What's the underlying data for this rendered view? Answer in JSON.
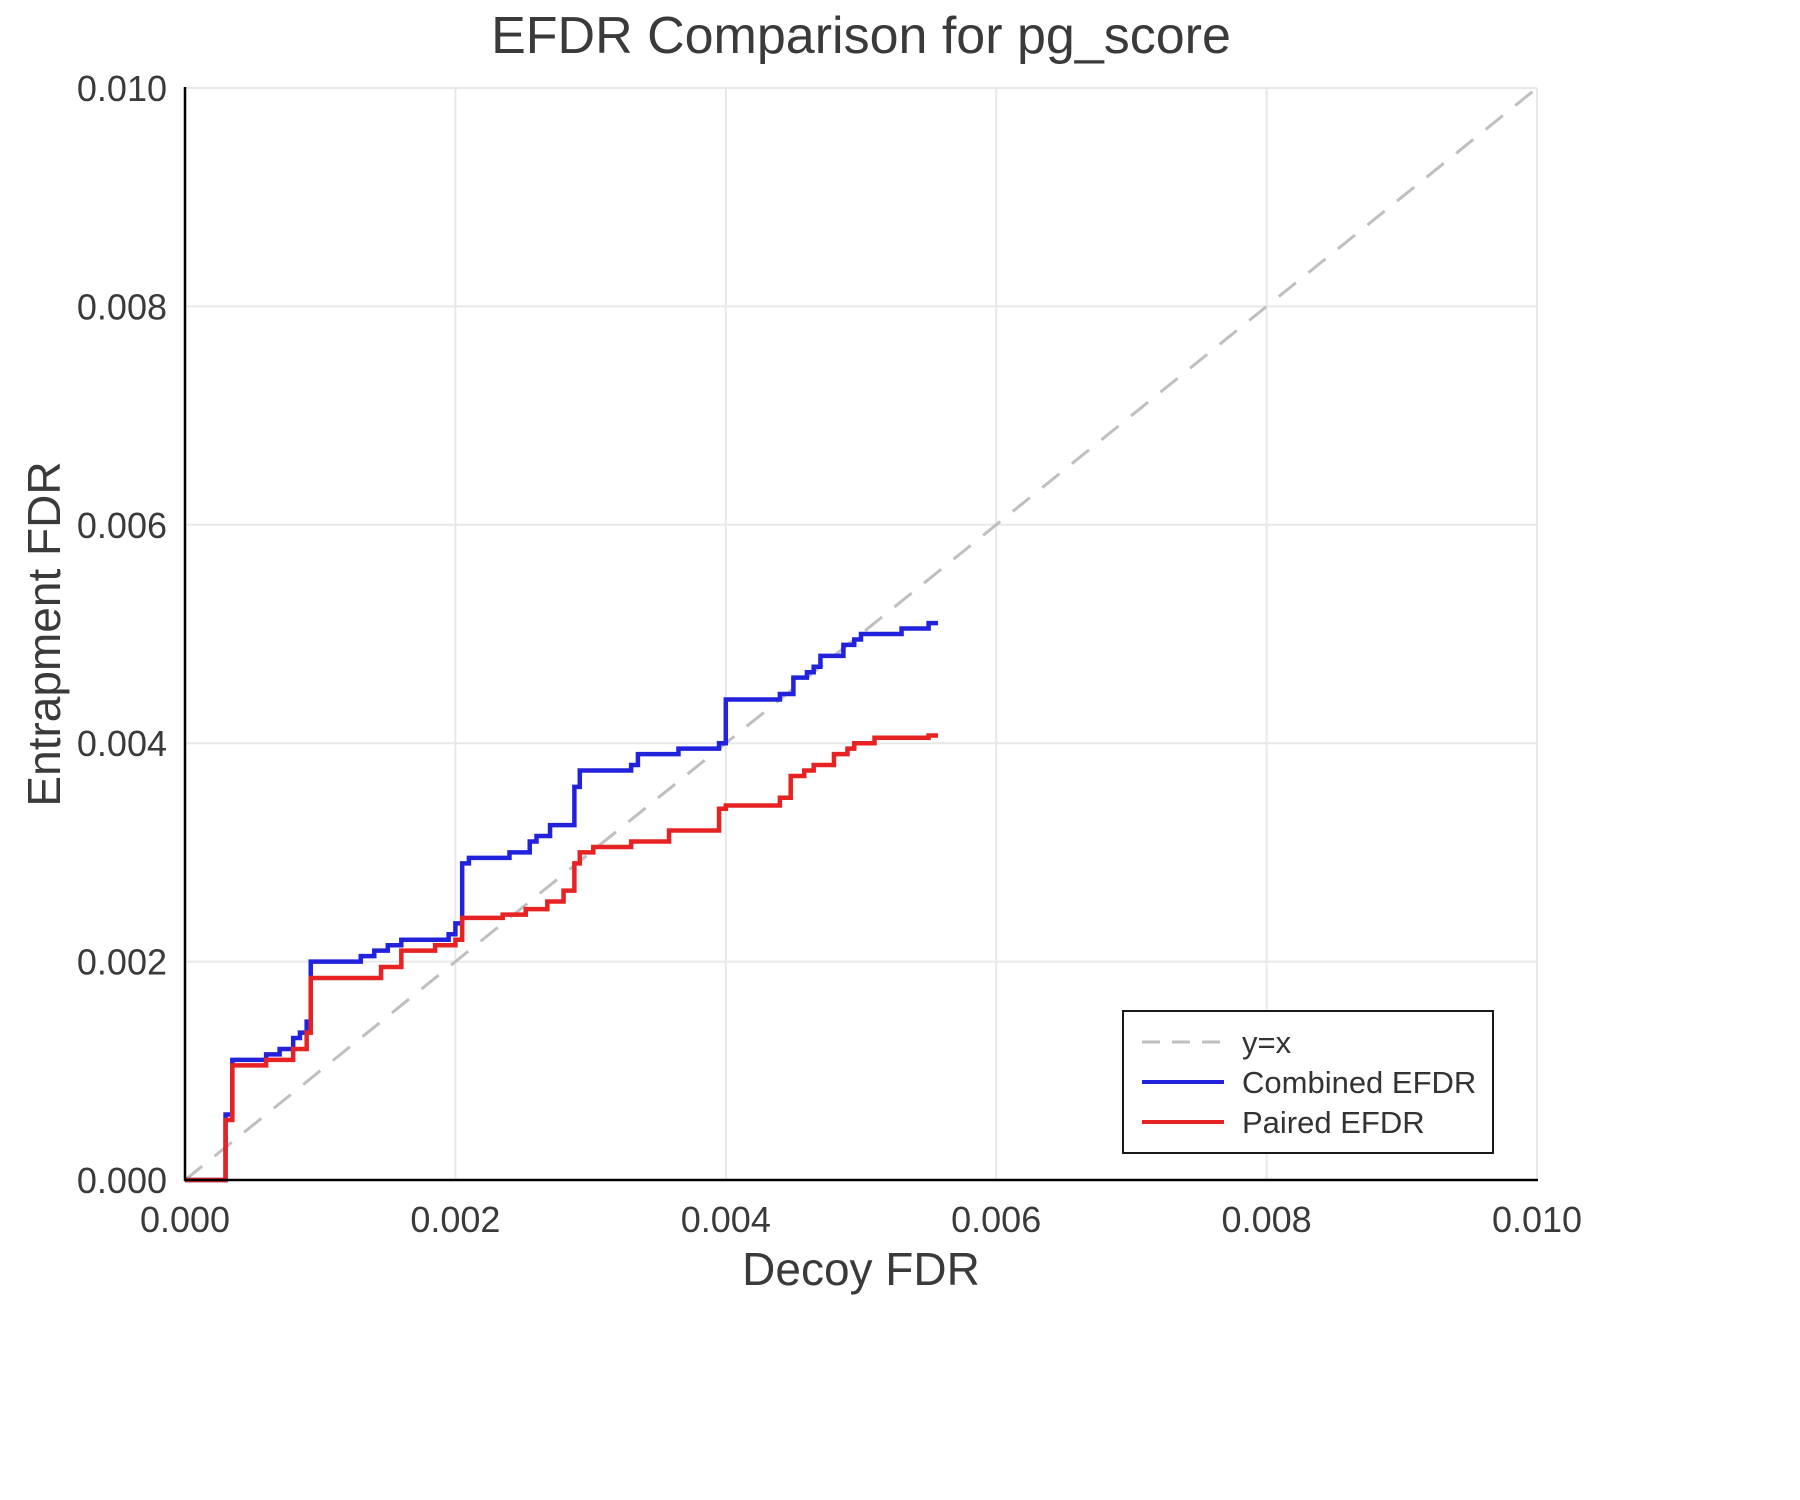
{
  "page": {
    "background": "#ffffff"
  },
  "chart_data": {
    "type": "line",
    "title": "EFDR Comparison for pg_score",
    "xlabel": "Decoy FDR",
    "ylabel": "Entrapment FDR",
    "xlim": [
      0.0,
      0.01
    ],
    "ylim": [
      0.0,
      0.01
    ],
    "xticks": [
      0.0,
      0.002,
      0.004,
      0.006,
      0.008,
      0.01
    ],
    "xtick_labels": [
      "0.000",
      "0.002",
      "0.004",
      "0.006",
      "0.008",
      "0.010"
    ],
    "yticks": [
      0.0,
      0.002,
      0.004,
      0.006,
      0.008,
      0.01
    ],
    "ytick_labels": [
      "0.000",
      "0.002",
      "0.004",
      "0.006",
      "0.008",
      "0.010"
    ],
    "grid": true,
    "grid_color": "#e8e8e8",
    "axis_color": "#000000",
    "text_color": "#3a3a3a",
    "legend": {
      "position": "lower-right",
      "border_color": "#1a1a1a",
      "background": "#ffffff"
    },
    "series": [
      {
        "name": "y=x",
        "color": "#bfbfbf",
        "dash": true,
        "width": 3,
        "points": [
          [
            0.0,
            0.0
          ],
          [
            0.01,
            0.01
          ]
        ]
      },
      {
        "name": "Combined EFDR",
        "color": "#2222dd",
        "dash": false,
        "width": 4.5,
        "points": [
          [
            0.0,
            0.0
          ],
          [
            0.0003,
            0.0
          ],
          [
            0.0003,
            0.0006
          ],
          [
            0.00035,
            0.0006
          ],
          [
            0.00035,
            0.0011
          ],
          [
            0.0006,
            0.0011
          ],
          [
            0.0006,
            0.00115
          ],
          [
            0.0007,
            0.00115
          ],
          [
            0.0007,
            0.0012
          ],
          [
            0.0008,
            0.0012
          ],
          [
            0.0008,
            0.0013
          ],
          [
            0.00085,
            0.0013
          ],
          [
            0.00085,
            0.00135
          ],
          [
            0.0009,
            0.00135
          ],
          [
            0.0009,
            0.00145
          ],
          [
            0.00093,
            0.00145
          ],
          [
            0.00093,
            0.002
          ],
          [
            0.0013,
            0.002
          ],
          [
            0.0013,
            0.00205
          ],
          [
            0.0014,
            0.00205
          ],
          [
            0.0014,
            0.0021
          ],
          [
            0.0015,
            0.0021
          ],
          [
            0.0015,
            0.00215
          ],
          [
            0.0016,
            0.00215
          ],
          [
            0.0016,
            0.0022
          ],
          [
            0.00195,
            0.0022
          ],
          [
            0.00195,
            0.00225
          ],
          [
            0.002,
            0.00225
          ],
          [
            0.002,
            0.00235
          ],
          [
            0.00205,
            0.00235
          ],
          [
            0.00205,
            0.0029
          ],
          [
            0.0021,
            0.0029
          ],
          [
            0.0021,
            0.00295
          ],
          [
            0.0024,
            0.00295
          ],
          [
            0.0024,
            0.003
          ],
          [
            0.00255,
            0.003
          ],
          [
            0.00255,
            0.0031
          ],
          [
            0.0026,
            0.0031
          ],
          [
            0.0026,
            0.00315
          ],
          [
            0.0027,
            0.00315
          ],
          [
            0.0027,
            0.00325
          ],
          [
            0.00288,
            0.00325
          ],
          [
            0.00288,
            0.0036
          ],
          [
            0.00292,
            0.0036
          ],
          [
            0.00292,
            0.00375
          ],
          [
            0.0033,
            0.00375
          ],
          [
            0.0033,
            0.0038
          ],
          [
            0.00335,
            0.0038
          ],
          [
            0.00335,
            0.0039
          ],
          [
            0.00365,
            0.0039
          ],
          [
            0.00365,
            0.00395
          ],
          [
            0.00395,
            0.00395
          ],
          [
            0.00395,
            0.004
          ],
          [
            0.004,
            0.004
          ],
          [
            0.004,
            0.0044
          ],
          [
            0.0044,
            0.0044
          ],
          [
            0.0044,
            0.00445
          ],
          [
            0.0045,
            0.00445
          ],
          [
            0.0045,
            0.0046
          ],
          [
            0.0046,
            0.0046
          ],
          [
            0.0046,
            0.00465
          ],
          [
            0.00465,
            0.00465
          ],
          [
            0.00465,
            0.0047
          ],
          [
            0.0047,
            0.0047
          ],
          [
            0.0047,
            0.0048
          ],
          [
            0.00487,
            0.0048
          ],
          [
            0.00487,
            0.0049
          ],
          [
            0.00495,
            0.0049
          ],
          [
            0.00495,
            0.00495
          ],
          [
            0.005,
            0.00495
          ],
          [
            0.005,
            0.005
          ],
          [
            0.0053,
            0.005
          ],
          [
            0.0053,
            0.00505
          ],
          [
            0.0055,
            0.00505
          ],
          [
            0.0055,
            0.0051
          ],
          [
            0.00557,
            0.0051
          ]
        ]
      },
      {
        "name": "Paired EFDR",
        "color": "#e62222",
        "dash": false,
        "width": 4.5,
        "points": [
          [
            0.0,
            0.0
          ],
          [
            0.0003,
            0.0
          ],
          [
            0.0003,
            0.00055
          ],
          [
            0.00035,
            0.00055
          ],
          [
            0.00035,
            0.00105
          ],
          [
            0.0006,
            0.00105
          ],
          [
            0.0006,
            0.0011
          ],
          [
            0.0008,
            0.0011
          ],
          [
            0.0008,
            0.0012
          ],
          [
            0.0009,
            0.0012
          ],
          [
            0.0009,
            0.00135
          ],
          [
            0.00093,
            0.00135
          ],
          [
            0.00093,
            0.00185
          ],
          [
            0.00145,
            0.00185
          ],
          [
            0.00145,
            0.00195
          ],
          [
            0.0016,
            0.00195
          ],
          [
            0.0016,
            0.0021
          ],
          [
            0.00185,
            0.0021
          ],
          [
            0.00185,
            0.00215
          ],
          [
            0.002,
            0.00215
          ],
          [
            0.002,
            0.0022
          ],
          [
            0.00205,
            0.0022
          ],
          [
            0.00205,
            0.0024
          ],
          [
            0.00235,
            0.0024
          ],
          [
            0.00235,
            0.00243
          ],
          [
            0.00252,
            0.00243
          ],
          [
            0.00252,
            0.00248
          ],
          [
            0.00268,
            0.00248
          ],
          [
            0.00268,
            0.00255
          ],
          [
            0.0028,
            0.00255
          ],
          [
            0.0028,
            0.00265
          ],
          [
            0.00288,
            0.00265
          ],
          [
            0.00288,
            0.0029
          ],
          [
            0.00292,
            0.0029
          ],
          [
            0.00292,
            0.003
          ],
          [
            0.00302,
            0.003
          ],
          [
            0.00302,
            0.00305
          ],
          [
            0.0033,
            0.00305
          ],
          [
            0.0033,
            0.0031
          ],
          [
            0.00358,
            0.0031
          ],
          [
            0.00358,
            0.0032
          ],
          [
            0.00395,
            0.0032
          ],
          [
            0.00395,
            0.0034
          ],
          [
            0.004,
            0.0034
          ],
          [
            0.004,
            0.00343
          ],
          [
            0.0044,
            0.00343
          ],
          [
            0.0044,
            0.0035
          ],
          [
            0.00448,
            0.0035
          ],
          [
            0.00448,
            0.0037
          ],
          [
            0.00458,
            0.0037
          ],
          [
            0.00458,
            0.00375
          ],
          [
            0.00465,
            0.00375
          ],
          [
            0.00465,
            0.0038
          ],
          [
            0.0048,
            0.0038
          ],
          [
            0.0048,
            0.0039
          ],
          [
            0.0049,
            0.0039
          ],
          [
            0.0049,
            0.00395
          ],
          [
            0.00495,
            0.00395
          ],
          [
            0.00495,
            0.004
          ],
          [
            0.0051,
            0.004
          ],
          [
            0.0051,
            0.00405
          ],
          [
            0.0055,
            0.00405
          ],
          [
            0.0055,
            0.00407
          ],
          [
            0.00557,
            0.00407
          ]
        ]
      }
    ]
  }
}
